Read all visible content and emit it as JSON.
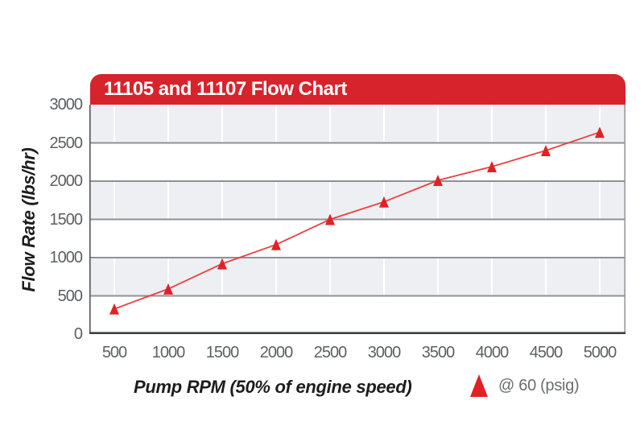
{
  "chart": {
    "title": "11105 and 11107 Flow Chart",
    "colors": {
      "title_bar": "#d7232c",
      "title_text": "#ffffff",
      "band": "#edeff3",
      "band_alt": "#ffffff",
      "grid_line": "#8e9196",
      "vertical_grid_line": "#ffffff",
      "border_left": "#55575c",
      "border_right": "#96999e",
      "border_bottom": "#3d3f43",
      "series_line": "#ec4040",
      "series_marker": "#e02227",
      "tick_text": "#5d5f63",
      "axis_title_text": "#1d1d1f",
      "legend_text": "#6b6d71"
    }
  },
  "chart_data": {
    "type": "line",
    "title": "11105 and 11107 Flow Chart",
    "xlabel": "Pump RPM (50% of engine speed)",
    "ylabel": "Flow Rate (lbs/hr)",
    "x": [
      500,
      1000,
      1500,
      2000,
      2500,
      3000,
      3500,
      4000,
      4500,
      5000
    ],
    "xticks": [
      "500",
      "1000",
      "1500",
      "2000",
      "2500",
      "3000",
      "3500",
      "4000",
      "4500",
      "5000"
    ],
    "yticks": [
      0,
      500,
      1000,
      1500,
      2000,
      2500,
      3000
    ],
    "ylim": [
      0,
      3000
    ],
    "grid": "horizontal bands alternating gray/white every 500, gridlines at each 500",
    "legend_position": "bottom-right below axis",
    "series": [
      {
        "name": "@ 60 (psig)",
        "marker": "triangle-up",
        "values": [
          330,
          590,
          920,
          1170,
          1500,
          1730,
          2010,
          2190,
          2400,
          2640
        ]
      }
    ]
  }
}
